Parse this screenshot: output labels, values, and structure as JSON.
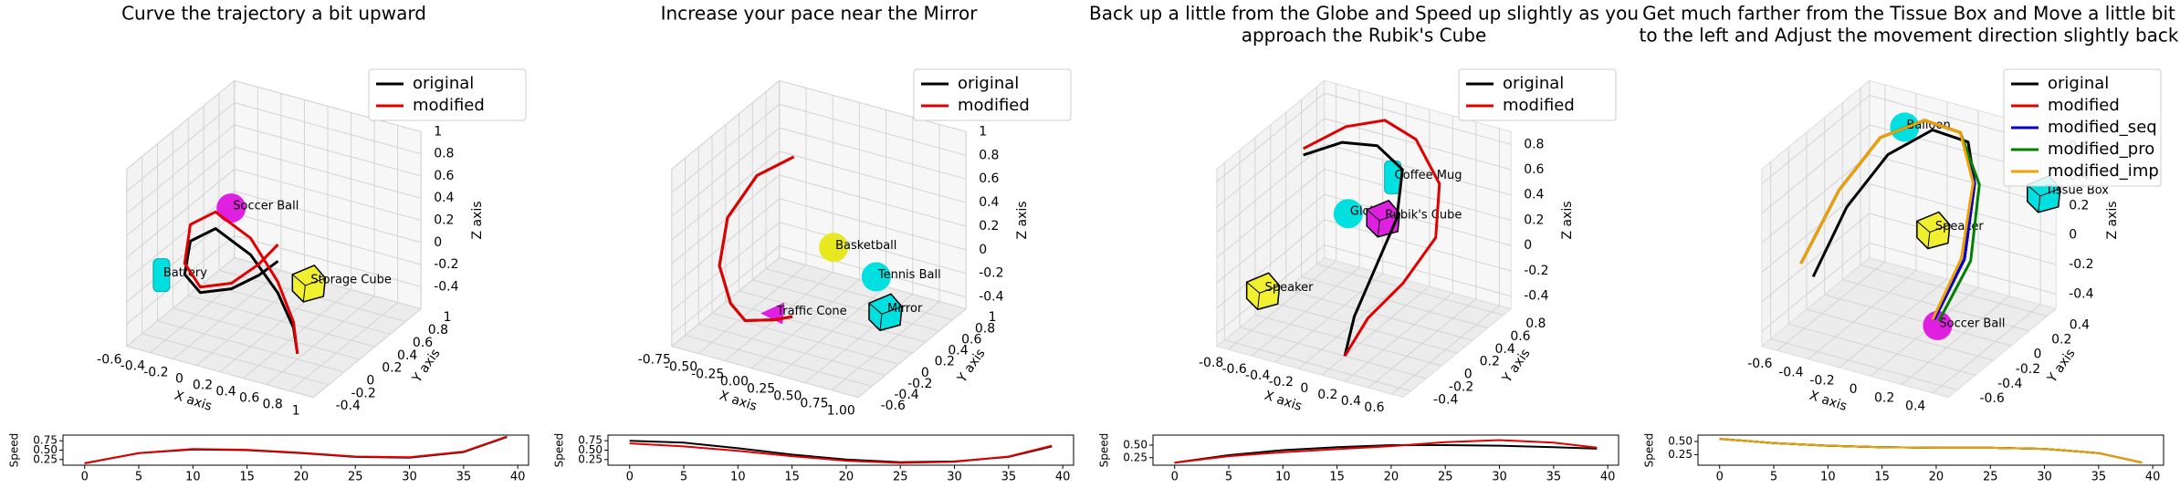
{
  "chart_data": [
    {
      "type": "line3d",
      "title": [
        "Curve the trajectory a bit upward"
      ],
      "xlabel": "X axis",
      "ylabel": "Y axis",
      "zlabel": "Z axis",
      "xlim": [
        -0.6,
        1.0
      ],
      "xticks": [
        -0.6,
        -0.4,
        -0.2,
        0.0,
        0.2,
        0.4,
        0.6,
        0.8,
        1.0
      ],
      "ylim": [
        -0.4,
        1.0
      ],
      "yticks": [
        -0.4,
        -0.2,
        0.0,
        0.2,
        0.4,
        0.6,
        0.8,
        1.0
      ],
      "zlim": [
        -0.6,
        1.0
      ],
      "zticks": [
        -0.4,
        -0.2,
        0.0,
        0.2,
        0.4,
        0.6,
        0.8,
        1.0
      ],
      "legend": "upper right",
      "series": [
        {
          "name": "original",
          "color": "#000000",
          "x": [
            0.6,
            0.5,
            0.3,
            0.0,
            -0.3,
            -0.45,
            -0.4,
            -0.2,
            0.1,
            0.3,
            0.4
          ],
          "y": [
            0.0,
            0.1,
            0.2,
            0.3,
            0.3,
            0.2,
            0.05,
            -0.05,
            -0.1,
            -0.05,
            0.05
          ],
          "z": [
            -0.55,
            -0.4,
            -0.2,
            0.0,
            0.15,
            0.05,
            -0.15,
            -0.2,
            -0.05,
            0.1,
            0.2
          ]
        },
        {
          "name": "modified",
          "color": "#e00000",
          "x": [
            0.6,
            0.5,
            0.3,
            0.0,
            -0.3,
            -0.45,
            -0.4,
            -0.2,
            0.1,
            0.3,
            0.4
          ],
          "y": [
            0.0,
            0.1,
            0.2,
            0.3,
            0.3,
            0.2,
            0.05,
            -0.05,
            -0.1,
            -0.05,
            0.05
          ],
          "z": [
            -0.55,
            -0.35,
            -0.1,
            0.15,
            0.3,
            0.2,
            -0.05,
            -0.15,
            0.0,
            0.2,
            0.35
          ]
        }
      ],
      "objects": [
        {
          "label": "Soccer Ball",
          "shape": "sphere",
          "color": "#e020e0",
          "x": -0.1,
          "y": 0.2,
          "z": 0.45
        },
        {
          "label": "Battery",
          "shape": "cylinder",
          "color": "#00e0e0",
          "x": -0.5,
          "y": -0.1,
          "z": -0.1
        },
        {
          "label": "Storage Cube",
          "shape": "cube",
          "color": "#f0f030",
          "x": 0.5,
          "y": 0.3,
          "z": -0.1
        }
      ]
    },
    {
      "type": "line",
      "ylabel": "Speed",
      "xlim": [
        -2,
        41
      ],
      "xticks": [
        0,
        5,
        10,
        15,
        20,
        25,
        30,
        35,
        40
      ],
      "ylim": [
        0.1,
        0.9
      ],
      "yticks": [
        0.25,
        {
          "value": 0.5,
          "label": "0.50"
        },
        0.75
      ],
      "x": [
        0,
        5,
        10,
        15,
        20,
        25,
        30,
        35,
        39
      ],
      "series": [
        {
          "color": "#000000",
          "values": [
            0.15,
            0.42,
            0.52,
            0.5,
            0.42,
            0.32,
            0.3,
            0.45,
            0.85
          ]
        },
        {
          "color": "#e00000",
          "values": [
            0.15,
            0.42,
            0.53,
            0.51,
            0.43,
            0.33,
            0.31,
            0.46,
            0.86
          ]
        }
      ]
    },
    {
      "type": "line3d",
      "title": [
        "Increase your pace near the Mirror"
      ],
      "xlabel": "X axis",
      "ylabel": "Y axis",
      "zlabel": "Z axis",
      "xlim": [
        -0.75,
        1.0
      ],
      "xticks": [
        {
          "value": -0.75,
          "label": "-0.75"
        },
        {
          "value": -0.5,
          "label": "-0.50"
        },
        {
          "value": -0.25,
          "label": "-0.25"
        },
        {
          "value": 0,
          "label": "0.00"
        },
        {
          "value": 0.25,
          "label": "0.25"
        },
        {
          "value": 0.5,
          "label": "0.50"
        },
        {
          "value": 0.75,
          "label": "0.75"
        },
        {
          "value": 1.0,
          "label": "1.00"
        }
      ],
      "ylim": [
        -0.6,
        1.0
      ],
      "yticks": [
        -0.6,
        -0.4,
        -0.2,
        0.0,
        0.2,
        0.4,
        0.6,
        0.8,
        1.0
      ],
      "zlim": [
        -0.5,
        1.0
      ],
      "zticks": [
        -0.4,
        -0.2,
        0.0,
        0.2,
        0.4,
        0.6,
        0.8,
        1.0
      ],
      "legend": "upper right",
      "series": [
        {
          "name": "original",
          "color": "#000000",
          "x": [
            -0.3,
            -0.55,
            -0.7,
            -0.65,
            -0.45,
            -0.25,
            -0.05,
            0.15,
            0.35
          ],
          "y": [
            0.5,
            0.35,
            0.15,
            -0.05,
            -0.2,
            -0.3,
            -0.4,
            -0.5,
            -0.55
          ],
          "z": [
            0.7,
            0.55,
            0.25,
            -0.05,
            -0.25,
            -0.3,
            -0.2,
            -0.1,
            0.0
          ]
        },
        {
          "name": "modified",
          "color": "#e00000",
          "x": [
            -0.3,
            -0.55,
            -0.7,
            -0.65,
            -0.45,
            -0.25,
            -0.05,
            0.15,
            0.35
          ],
          "y": [
            0.5,
            0.35,
            0.15,
            -0.05,
            -0.2,
            -0.3,
            -0.4,
            -0.5,
            -0.55
          ],
          "z": [
            0.7,
            0.55,
            0.25,
            -0.05,
            -0.25,
            -0.3,
            -0.2,
            -0.1,
            0.0
          ]
        }
      ],
      "objects": [
        {
          "label": "Basketball",
          "shape": "sphere",
          "color": "#e8e820",
          "x": 0.2,
          "y": 0.3,
          "z": 0.15
        },
        {
          "label": "Tennis Ball",
          "shape": "sphere",
          "color": "#00e0e0",
          "x": 0.6,
          "y": 0.3,
          "z": 0.0
        },
        {
          "label": "Mirror",
          "shape": "cube",
          "color": "#00e0e0",
          "x": 0.75,
          "y": 0.2,
          "z": -0.2
        },
        {
          "label": "Traffic Cone",
          "shape": "cone",
          "color": "#e020e0",
          "x": 0.0,
          "y": -0.25,
          "z": -0.2
        }
      ]
    },
    {
      "type": "line",
      "ylabel": "Speed",
      "xlim": [
        -2,
        41
      ],
      "xticks": [
        0,
        5,
        10,
        15,
        20,
        25,
        30,
        35,
        40
      ],
      "ylim": [
        0.1,
        0.9
      ],
      "yticks": [
        0.25,
        {
          "value": 0.5,
          "label": "0.50"
        },
        0.75
      ],
      "x": [
        0,
        5,
        10,
        15,
        20,
        25,
        30,
        35,
        39
      ],
      "series": [
        {
          "color": "#000000",
          "values": [
            0.75,
            0.7,
            0.55,
            0.38,
            0.25,
            0.18,
            0.2,
            0.32,
            0.6
          ]
        },
        {
          "color": "#e00000",
          "values": [
            0.68,
            0.6,
            0.48,
            0.34,
            0.22,
            0.16,
            0.19,
            0.33,
            0.62
          ]
        }
      ]
    },
    {
      "type": "line3d",
      "title": [
        "Back up a little from the Globe and Speed up slightly as you",
        "approach the Rubik's Cube"
      ],
      "xlabel": "X axis",
      "ylabel": "Y axis",
      "zlabel": "Z axis",
      "xlim": [
        -0.9,
        0.7
      ],
      "xticks": [
        -0.8,
        -0.6,
        -0.4,
        -0.2,
        0.0,
        0.2,
        0.4,
        0.6
      ],
      "ylim": [
        -0.5,
        0.9
      ],
      "yticks": [
        -0.4,
        -0.2,
        0.0,
        0.2,
        0.4,
        0.6,
        0.8
      ],
      "zlim": [
        -0.5,
        0.9
      ],
      "zticks": [
        -0.4,
        -0.2,
        0.0,
        0.2,
        0.4,
        0.6,
        0.8
      ],
      "legend": "upper right",
      "series": [
        {
          "name": "original",
          "color": "#000000",
          "x": [
            -0.85,
            -0.55,
            -0.25,
            0.0,
            0.05,
            0.0,
            -0.05,
            0.0
          ],
          "y": [
            0.55,
            0.6,
            0.6,
            0.55,
            0.4,
            0.2,
            0.0,
            -0.2
          ],
          "z": [
            0.5,
            0.65,
            0.7,
            0.6,
            0.3,
            0.0,
            -0.3,
            -0.5
          ]
        },
        {
          "name": "modified",
          "color": "#e00000",
          "x": [
            -0.85,
            -0.55,
            -0.25,
            0.05,
            0.35,
            0.45,
            0.3,
            0.1,
            0.0
          ],
          "y": [
            0.55,
            0.65,
            0.7,
            0.65,
            0.5,
            0.3,
            0.1,
            -0.05,
            -0.2
          ],
          "z": [
            0.55,
            0.75,
            0.85,
            0.8,
            0.6,
            0.3,
            0.0,
            -0.25,
            -0.5
          ]
        }
      ],
      "objects": [
        {
          "label": "Globe",
          "shape": "sphere",
          "color": "#00e0e0",
          "x": -0.3,
          "y": 0.3,
          "z": 0.3
        },
        {
          "label": "Coffee Mug",
          "shape": "cylinder",
          "color": "#00e0e0",
          "x": -0.05,
          "y": 0.5,
          "z": 0.55
        },
        {
          "label": "Rubik's Cube",
          "shape": "cube",
          "color": "#e020e0",
          "x": 0.0,
          "y": 0.3,
          "z": 0.35
        },
        {
          "label": "Speaker",
          "shape": "cube",
          "color": "#f0f030",
          "x": -0.7,
          "y": -0.2,
          "z": -0.15
        }
      ]
    },
    {
      "type": "line",
      "ylabel": "Speed",
      "xlim": [
        -2,
        41
      ],
      "xticks": [
        0,
        5,
        10,
        15,
        20,
        25,
        30,
        35,
        40
      ],
      "ylim": [
        0.1,
        0.7
      ],
      "yticks": [
        0.25,
        {
          "value": 0.5,
          "label": "0.50"
        }
      ],
      "x": [
        0,
        5,
        10,
        15,
        20,
        25,
        30,
        35,
        39
      ],
      "series": [
        {
          "color": "#000000",
          "values": [
            0.15,
            0.3,
            0.4,
            0.46,
            0.5,
            0.5,
            0.49,
            0.46,
            0.43
          ]
        },
        {
          "color": "#e00000",
          "values": [
            0.15,
            0.28,
            0.36,
            0.42,
            0.48,
            0.56,
            0.6,
            0.55,
            0.45
          ]
        }
      ]
    },
    {
      "type": "line3d",
      "title": [
        "Get much farther from the Tissue Box and Move a little bit",
        "to the left and Adjust the movement direction slightly back"
      ],
      "xlabel": "X axis",
      "ylabel": "Y axis",
      "zlabel": "Z axis",
      "xlim": [
        -0.7,
        0.5
      ],
      "xticks": [
        -0.6,
        -0.4,
        -0.2,
        0.0,
        0.2,
        0.4
      ],
      "ylim": [
        -0.7,
        0.5
      ],
      "yticks": [
        -0.6,
        -0.4,
        -0.2,
        0.0,
        0.2,
        0.4
      ],
      "zlim": [
        -0.5,
        0.7
      ],
      "zticks": [
        -0.4,
        -0.2,
        0.0,
        0.2,
        0.4,
        0.6
      ],
      "legend": "upper right",
      "series": [
        {
          "name": "original",
          "color": "#000000",
          "x": [
            -0.6,
            -0.5,
            -0.35,
            -0.15,
            0.05,
            0.15,
            0.2,
            0.15
          ],
          "y": [
            -0.3,
            -0.1,
            0.1,
            0.25,
            0.3,
            0.2,
            0.0,
            -0.25
          ],
          "z": [
            -0.2,
            0.2,
            0.5,
            0.65,
            0.6,
            0.4,
            0.0,
            -0.3
          ]
        },
        {
          "name": "modified",
          "color": "#e00000",
          "x": [
            -0.65,
            -0.55,
            -0.4,
            -0.2,
            0.0,
            0.15,
            0.2,
            0.15
          ],
          "y": [
            -0.35,
            -0.1,
            0.1,
            0.25,
            0.3,
            0.2,
            0.0,
            -0.25
          ],
          "z": [
            -0.1,
            0.3,
            0.6,
            0.7,
            0.65,
            0.4,
            0.0,
            -0.3
          ]
        },
        {
          "name": "modified_seq",
          "color": "#0000d0",
          "x": [
            -0.65,
            -0.55,
            -0.4,
            -0.2,
            0.0,
            0.15,
            0.2,
            0.15
          ],
          "y": [
            -0.35,
            -0.1,
            0.1,
            0.25,
            0.3,
            0.2,
            0.0,
            -0.25
          ],
          "z": [
            -0.1,
            0.3,
            0.6,
            0.7,
            0.65,
            0.4,
            0.0,
            -0.3
          ]
        },
        {
          "name": "modified_pro",
          "color": "#008000",
          "x": [
            -0.65,
            -0.55,
            -0.4,
            -0.2,
            0.0,
            0.18,
            0.24,
            0.18
          ],
          "y": [
            -0.35,
            -0.1,
            0.1,
            0.25,
            0.3,
            0.2,
            0.0,
            -0.25
          ],
          "z": [
            -0.1,
            0.3,
            0.6,
            0.7,
            0.65,
            0.4,
            0.0,
            -0.3
          ]
        },
        {
          "name": "modified_imp",
          "color": "#f0a000",
          "x": [
            -0.65,
            -0.55,
            -0.4,
            -0.2,
            0.0,
            0.14,
            0.18,
            0.14
          ],
          "y": [
            -0.35,
            -0.1,
            0.1,
            0.25,
            0.3,
            0.2,
            0.0,
            -0.25
          ],
          "z": [
            -0.1,
            0.3,
            0.6,
            0.7,
            0.65,
            0.4,
            0.0,
            -0.3
          ]
        }
      ],
      "objects": [
        {
          "label": "Balloon",
          "shape": "sphere",
          "color": "#00e0e0",
          "x": -0.3,
          "y": 0.2,
          "z": 0.65
        },
        {
          "label": "Tissue Box",
          "shape": "cube",
          "color": "#00e0e0",
          "x": 0.45,
          "y": 0.45,
          "z": 0.3
        },
        {
          "label": "Speaker",
          "shape": "cube",
          "color": "#f0f030",
          "x": 0.0,
          "y": 0.0,
          "z": 0.15
        },
        {
          "label": "Soccer Ball",
          "shape": "sphere",
          "color": "#e020e0",
          "x": 0.2,
          "y": -0.3,
          "z": -0.3
        }
      ]
    },
    {
      "type": "line",
      "ylabel": "Speed",
      "xlim": [
        -2,
        41
      ],
      "xticks": [
        0,
        5,
        10,
        15,
        20,
        25,
        30,
        35,
        40
      ],
      "ylim": [
        0.05,
        0.62
      ],
      "yticks": [
        0.25,
        {
          "value": 0.5,
          "label": "0.50"
        }
      ],
      "x": [
        0,
        5,
        10,
        15,
        20,
        25,
        30,
        35,
        39
      ],
      "series": [
        {
          "color": "#000000",
          "values": [
            0.55,
            0.47,
            0.42,
            0.39,
            0.38,
            0.38,
            0.36,
            0.28,
            0.1
          ]
        },
        {
          "color": "#e00000",
          "values": [
            0.55,
            0.47,
            0.42,
            0.39,
            0.38,
            0.38,
            0.36,
            0.28,
            0.1
          ]
        },
        {
          "color": "#0000d0",
          "values": [
            0.55,
            0.47,
            0.42,
            0.39,
            0.38,
            0.38,
            0.36,
            0.28,
            0.1
          ]
        },
        {
          "color": "#008000",
          "values": [
            0.55,
            0.47,
            0.42,
            0.39,
            0.38,
            0.38,
            0.36,
            0.28,
            0.1
          ]
        },
        {
          "color": "#f0a000",
          "values": [
            0.55,
            0.47,
            0.42,
            0.39,
            0.38,
            0.38,
            0.36,
            0.28,
            0.1
          ]
        }
      ]
    }
  ]
}
